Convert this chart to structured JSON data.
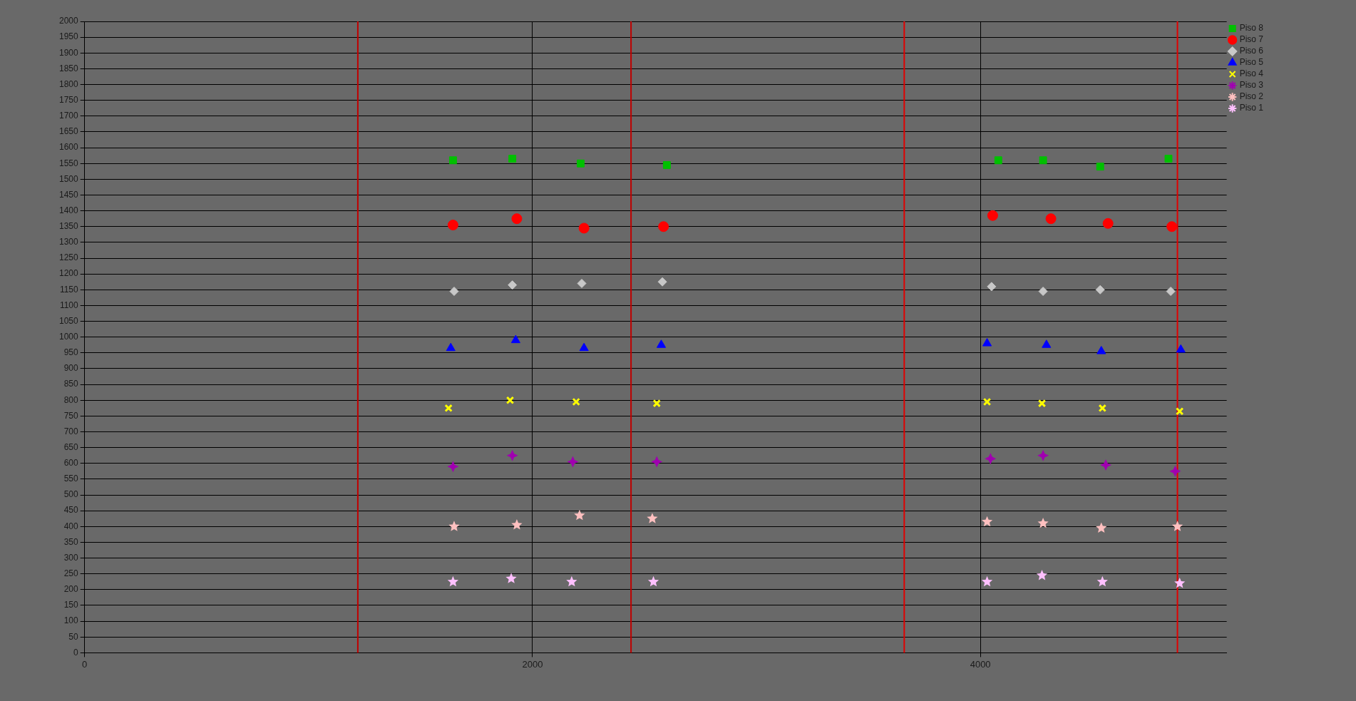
{
  "chart_data": {
    "type": "scatter",
    "xlim": [
      0,
      5100
    ],
    "xticks": [
      0,
      2000,
      4000
    ],
    "ylim": [
      0,
      2000
    ],
    "yticks": [
      0,
      50,
      100,
      150,
      200,
      250,
      300,
      350,
      400,
      450,
      500,
      550,
      600,
      650,
      700,
      750,
      800,
      850,
      900,
      950,
      1000,
      1050,
      1100,
      1150,
      1200,
      1250,
      1300,
      1350,
      1400,
      1450,
      1500,
      1550,
      1600,
      1650,
      1700,
      1750,
      1800,
      1850,
      1900,
      1950,
      2000
    ],
    "grid": true,
    "legend": "top right",
    "series": [
      {
        "name": "Piso 8",
        "color": "#00c000",
        "marker": "square",
        "x": [
          1645,
          1910,
          2215,
          2600,
          4080,
          4280,
          4535,
          4840
        ],
        "values": [
          1560,
          1565,
          1550,
          1545,
          1560,
          1560,
          1540,
          1565
        ]
      },
      {
        "name": "Piso 7",
        "color": "#ff0000",
        "marker": "circle",
        "x": [
          1645,
          1930,
          2230,
          2585,
          4055,
          4315,
          4570,
          4855
        ],
        "values": [
          1355,
          1375,
          1345,
          1350,
          1385,
          1375,
          1360,
          1350
        ]
      },
      {
        "name": "Piso 6",
        "color": "#c8c8c8",
        "marker": "diamond",
        "x": [
          1650,
          1910,
          2220,
          2580,
          4050,
          4280,
          4535,
          4850
        ],
        "values": [
          1145,
          1165,
          1170,
          1175,
          1160,
          1145,
          1150,
          1145
        ]
      },
      {
        "name": "Piso 5",
        "color": "#0000ff",
        "marker": "triangle",
        "x": [
          1635,
          1925,
          2230,
          2575,
          4030,
          4295,
          4540,
          4895
        ],
        "values": [
          965,
          990,
          965,
          975,
          980,
          975,
          955,
          960
        ]
      },
      {
        "name": "Piso 4",
        "color": "#ffff00",
        "marker": "cross",
        "x": [
          1625,
          1900,
          2195,
          2555,
          4030,
          4275,
          4545,
          4890
        ],
        "values": [
          775,
          800,
          795,
          790,
          795,
          790,
          775,
          765
        ]
      },
      {
        "name": "Piso 3",
        "color": "#a000b0",
        "marker": "star",
        "x": [
          1645,
          1910,
          2180,
          2555,
          4045,
          4280,
          4560,
          4870
        ],
        "values": [
          590,
          625,
          605,
          605,
          615,
          625,
          595,
          575
        ]
      },
      {
        "name": "Piso 2",
        "color": "#ffc0c0",
        "marker": "star",
        "x": [
          1650,
          1930,
          2210,
          2535,
          4030,
          4280,
          4540,
          4880
        ],
        "values": [
          400,
          405,
          435,
          425,
          415,
          410,
          395,
          400
        ]
      },
      {
        "name": "Piso 1",
        "color": "#ffc0ff",
        "marker": "star",
        "x": [
          1645,
          1905,
          2175,
          2540,
          4030,
          4275,
          4545,
          4890
        ],
        "values": [
          225,
          235,
          225,
          225,
          225,
          245,
          225,
          220
        ]
      }
    ],
    "ref_lines": [
      {
        "axis": "x",
        "value": 1220,
        "color": "#c00000"
      },
      {
        "axis": "x",
        "value": 2440,
        "color": "#c00000"
      },
      {
        "axis": "x",
        "value": 3660,
        "color": "#e00000"
      },
      {
        "axis": "x",
        "value": 4880,
        "color": "#e00000"
      }
    ]
  }
}
